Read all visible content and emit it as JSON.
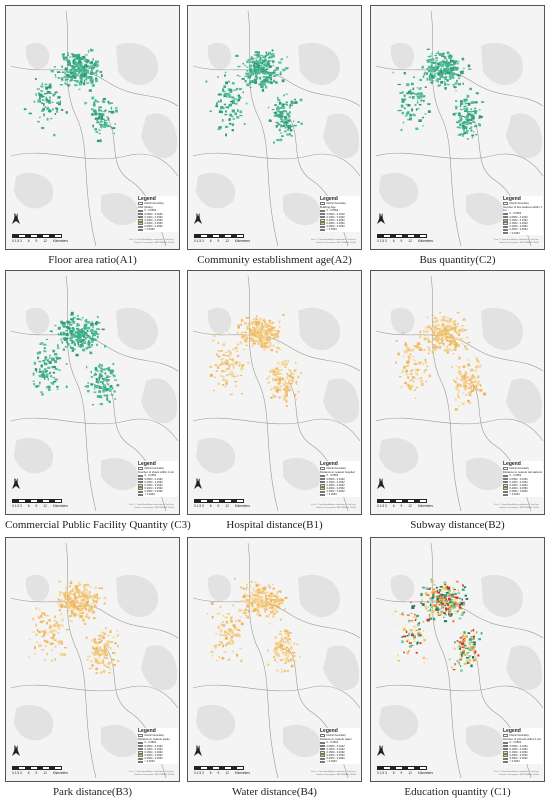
{
  "legend_title": "Legend",
  "boundary_label": "District boundary",
  "north_label": "N",
  "scale_ticks": [
    "0 1.5 3",
    "6",
    "9",
    "12"
  ],
  "scale_unit": "Kilometers",
  "credit": "Esri, © OpenStreetMap contributors, TomTom, Garmin, Foursquare, METI/NASA, USGS",
  "class_labels": [
    "0 - 0.0562",
    "0.0563 - 0.1062",
    "0.1063 - 0.1562",
    "0.1563 - 0.2062",
    "0.2063 - 0.2562",
    "0.2563 - 0.3062",
    "> 0.3063"
  ],
  "class_colors": [
    "#1a7f5e",
    "#3aa57e",
    "#7cc9a2",
    "#f2e28a",
    "#f5c25a",
    "#ef8c3a",
    "#d7301f"
  ],
  "panels": [
    {
      "caption": "Floor area ratio(A1)",
      "legend_sub": "FAR (Ratio)",
      "symbol": "green"
    },
    {
      "caption": "Community establishment age(A2)",
      "legend_sub": "Building Age",
      "symbol": "green"
    },
    {
      "caption": "Bus quantity(C2)",
      "legend_sub": "Number of bus stations within 1 km",
      "symbol": "green"
    },
    {
      "caption": "Commercial Public Facility Quantity (C3)",
      "legend_sub": "Number of shops within 1 km",
      "symbol": "green"
    },
    {
      "caption": "Hospital distance(B1)",
      "legend_sub": "Distance to nearest hospital",
      "symbol": "orange"
    },
    {
      "caption": "Subway distance(B2)",
      "legend_sub": "Distance to nearest rail stations",
      "symbol": "orange"
    },
    {
      "caption": "Park distance(B3)",
      "legend_sub": "Distance to nearest parks",
      "symbol": "orange"
    },
    {
      "caption": "Water distance(B4)",
      "legend_sub": "Distance to nearest water",
      "symbol": "orange"
    },
    {
      "caption": "Education quantity (C1)",
      "legend_sub": "Number of schools within 1 km",
      "symbol": "mixed"
    }
  ]
}
